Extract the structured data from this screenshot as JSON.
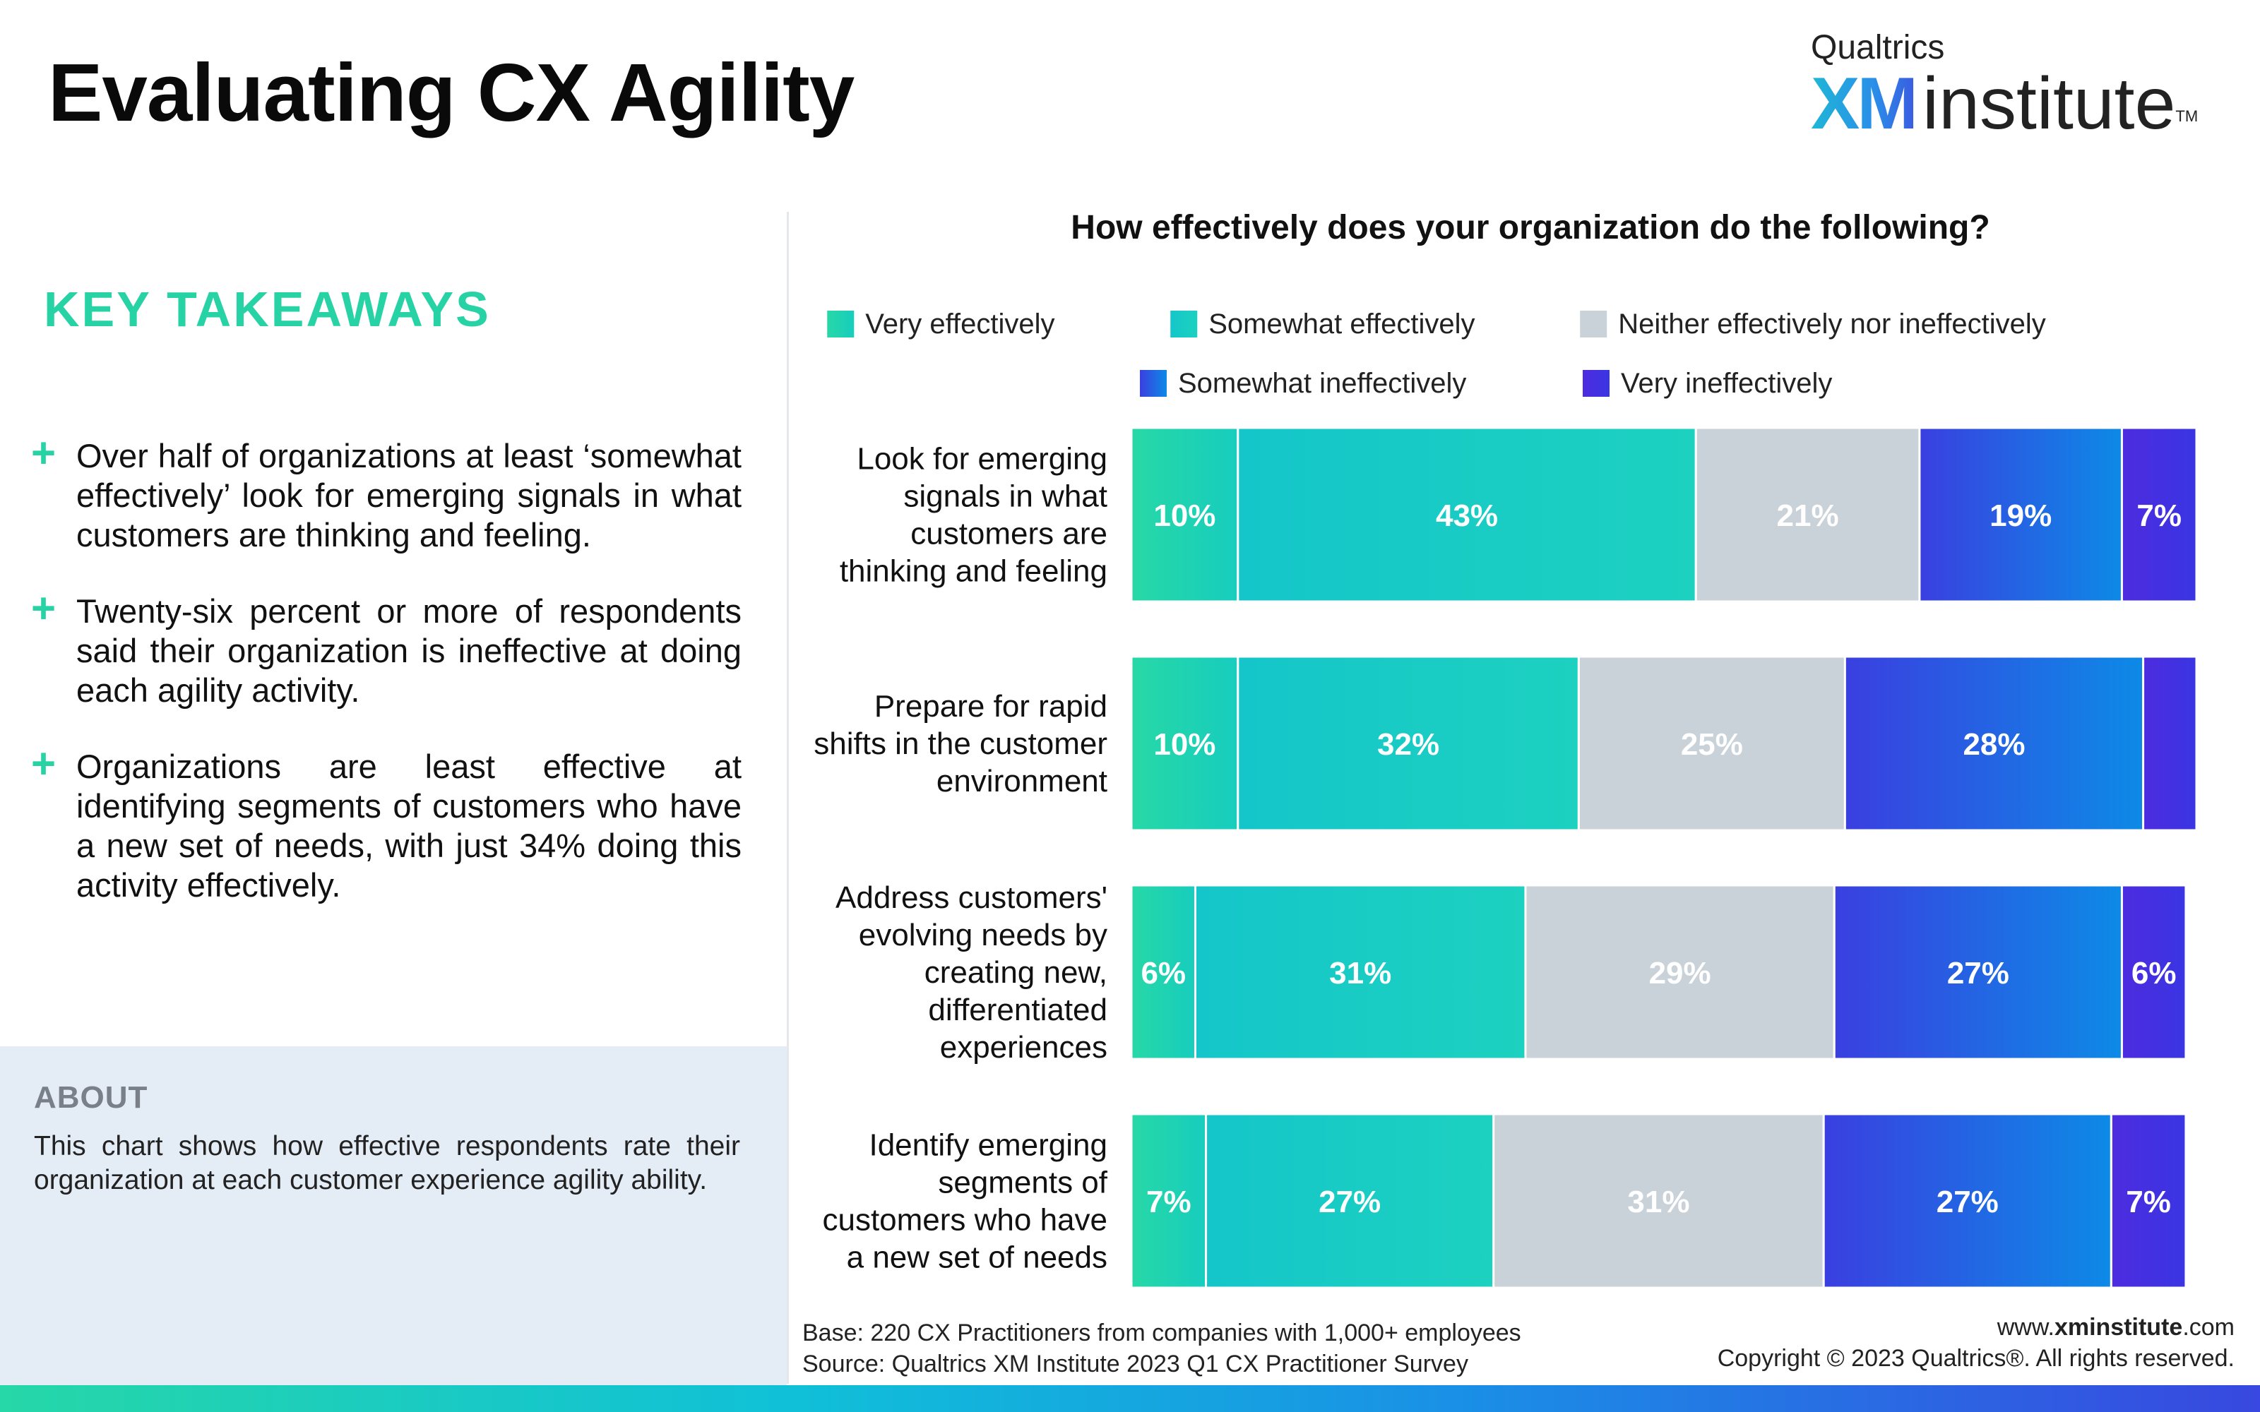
{
  "header": {
    "title": "Evaluating CX Agility",
    "logo_top": "Qualtrics",
    "logo_xm": "XM",
    "logo_institute": "institute",
    "logo_tm": "TM"
  },
  "takeaways": {
    "heading": "KEY TAKEAWAYS",
    "bullet_symbol": "+",
    "items": [
      "Over half of organizations at least ‘somewhat effectively’ look for emerging signals in what customers are thinking and feeling.",
      "Twenty-six percent or more of respondents said their organization is ineffective at doing each agility activity.",
      "Organizations are least effective at identifying segments of customers who have a new set of needs, with just 34% doing this activity effectively."
    ]
  },
  "about": {
    "heading": "ABOUT",
    "text": "This chart shows how effective respondents rate their organization at each customer experience agility ability."
  },
  "chart_data": {
    "type": "bar",
    "orientation": "horizontal",
    "stacked": true,
    "title": "How effectively does your organization do the following?",
    "categories": [
      "Look for emerging signals in what customers are thinking and feeling",
      "Prepare for rapid shifts in the customer environment",
      "Address customers' evolving needs by creating new, differentiated experiences",
      "Identify emerging segments of customers who have a new set of needs"
    ],
    "category_lines": [
      [
        "Look for emerging",
        "signals in what",
        "customers are",
        "thinking and feeling"
      ],
      [
        "Prepare for rapid",
        "shifts in the customer",
        "environment"
      ],
      [
        "Address customers'",
        "evolving needs by",
        "creating new,",
        "differentiated",
        "experiences"
      ],
      [
        "Identify emerging",
        "segments of",
        "customers who have",
        "a new set of needs"
      ]
    ],
    "series": [
      {
        "name": "Very effectively",
        "values": [
          10,
          10,
          6,
          7
        ],
        "labels": [
          "10%",
          "10%",
          "6%",
          "7%"
        ],
        "color_start": "#27d8a6",
        "color_end": "#17cdbe"
      },
      {
        "name": "Somewhat effectively",
        "values": [
          43,
          32,
          31,
          27
        ],
        "labels": [
          "43%",
          "32%",
          "31%",
          "27%"
        ],
        "color_start": "#14c6c9",
        "color_end": "#1dd1c0"
      },
      {
        "name": "Neither effectively nor ineffectively",
        "values": [
          21,
          25,
          29,
          31
        ],
        "labels": [
          "21%",
          "25%",
          "29%",
          "31%"
        ],
        "color_start": "#c9d2d8",
        "color_end": "#c9d2d8"
      },
      {
        "name": "Somewhat ineffectively",
        "values": [
          19,
          28,
          27,
          27
        ],
        "labels": [
          "19%",
          "28%",
          "27%",
          "27%"
        ],
        "color_start": "#3a3fe0",
        "color_end": "#0d8ae6"
      },
      {
        "name": "Very ineffectively",
        "values": [
          7,
          5,
          6,
          7
        ],
        "labels": [
          "7%",
          "",
          "6%",
          "7%"
        ],
        "color_start": "#4d2ce0",
        "color_end": "#3a35e2"
      }
    ],
    "legend_position": "top",
    "xlim": [
      0,
      100
    ],
    "grid": false
  },
  "footer": {
    "base": "Base: 220 CX Practitioners from companies with 1,000+ employees",
    "source": "Source: Qualtrics XM Institute 2023 Q1 CX Practitioner Survey",
    "url_prefix": "www.",
    "url_bold": "xminstitute",
    "url_suffix": ".com",
    "copyright": "Copyright © 2023 Qualtrics®. All rights reserved."
  }
}
